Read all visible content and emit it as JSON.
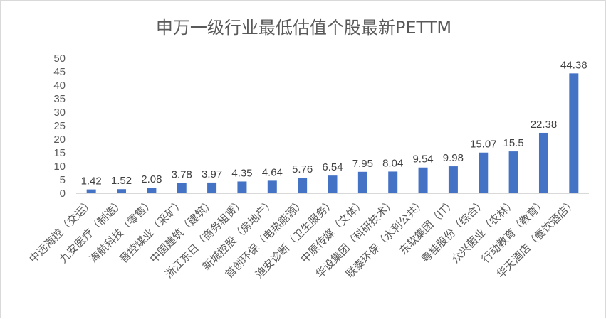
{
  "chart_data": {
    "type": "bar",
    "title": "申万一级行业最低估值个股最新PETTM",
    "xlabel": "",
    "ylabel": "",
    "ylim": [
      0,
      50
    ],
    "yticks": [
      0,
      5,
      10,
      15,
      20,
      25,
      30,
      35,
      40,
      45,
      50
    ],
    "grid": false,
    "legend": "none",
    "bar_color": "#4472c4",
    "categories": [
      "中远海控（交运）",
      "九安医疗（制造）",
      "海航科技（零售）",
      "晋控煤业（采矿）",
      "中国建筑（建筑）",
      "浙江东日（商务租赁）",
      "新城控股（房地产）",
      "首创环保（电热能源）",
      "迪安诊断（卫生服务）",
      "中原传媒（文体）",
      "华设集团（科研技术）",
      "联泰环保（水利公共）",
      "东软集团（IT）",
      "粤桂股份（综合）",
      "众兴菌业（农林）",
      "行动教育（教育）",
      "华天酒店（餐饮酒店）"
    ],
    "values": [
      1.42,
      1.52,
      2.08,
      3.78,
      3.97,
      4.35,
      4.64,
      5.76,
      6.54,
      7.95,
      8.04,
      9.54,
      9.98,
      15.07,
      15.5,
      22.38,
      44.38
    ],
    "data_labels": [
      "1.42",
      "1.52",
      "2.08",
      "3.78",
      "3.97",
      "4.35",
      "4.64",
      "5.76",
      "6.54",
      "7.95",
      "8.04",
      "9.54",
      "9.98",
      "15.07",
      "15.5",
      "22.38",
      "44.38"
    ]
  }
}
